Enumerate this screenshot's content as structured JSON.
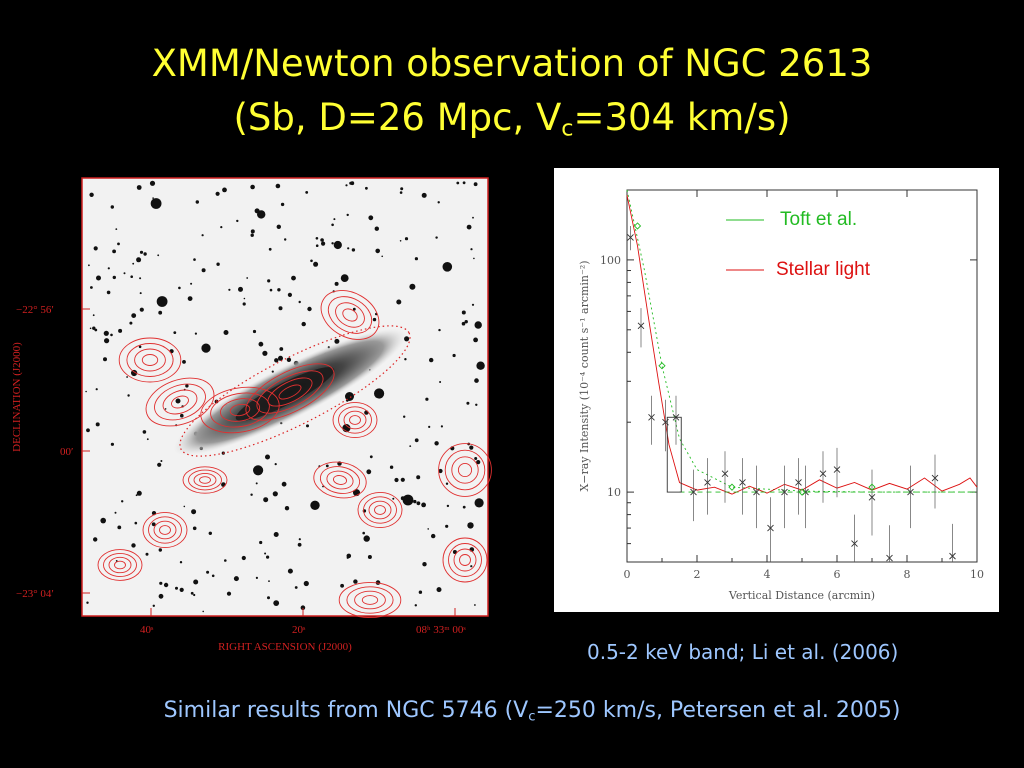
{
  "slide": {
    "title_line1": "XMM/Newton observation of NGC 2613",
    "title_line2_prefix": "(Sb, D=26 Mpc, V",
    "title_line2_sub": "c",
    "title_line2_suffix": "=304 km/s)"
  },
  "sky_image": {
    "ylabel": "DECLINATION (J2000)",
    "xlabel": "RIGHT ASCENSION (J2000)",
    "ytick_1": "−22° 56′",
    "ytick_2": "00′",
    "ytick_3": "−23° 04′",
    "xtick_1": "40ˢ",
    "xtick_2": "20ˢ",
    "xtick_3": "08ʰ 33ᵐ 00ˢ",
    "contour_color": "#e03030"
  },
  "chart_data": {
    "type": "scatter",
    "xlabel": "Vertical Distance (arcmin)",
    "ylabel": "X−ray Intensity (10⁻⁴ count s⁻¹ arcmin⁻²)",
    "xlim": [
      0,
      10
    ],
    "ylim": [
      5,
      200
    ],
    "yscale": "log",
    "xticks": [
      "0",
      "2",
      "4",
      "6",
      "8",
      "10"
    ],
    "yticks": [
      "10",
      "100"
    ],
    "legend": [
      {
        "name": "Toft et al.",
        "color": "#22bb22"
      },
      {
        "name": "Stellar light",
        "color": "#dd1111"
      }
    ],
    "points": [
      {
        "x": 0.1,
        "y": 125,
        "err": 15
      },
      {
        "x": 0.4,
        "y": 52,
        "err": 10
      },
      {
        "x": 0.7,
        "y": 21,
        "err": 5
      },
      {
        "x": 1.1,
        "y": 20,
        "err": 5
      },
      {
        "x": 1.4,
        "y": 21,
        "err": 5
      },
      {
        "x": 1.9,
        "y": 10,
        "err": 2.5
      },
      {
        "x": 2.3,
        "y": 11,
        "err": 3
      },
      {
        "x": 2.8,
        "y": 12,
        "err": 3
      },
      {
        "x": 3.3,
        "y": 11,
        "err": 3
      },
      {
        "x": 3.7,
        "y": 10,
        "err": 3
      },
      {
        "x": 4.1,
        "y": 7,
        "err": 2.5
      },
      {
        "x": 4.5,
        "y": 10,
        "err": 3
      },
      {
        "x": 4.9,
        "y": 11,
        "err": 3
      },
      {
        "x": 5.1,
        "y": 10,
        "err": 3
      },
      {
        "x": 5.6,
        "y": 12,
        "err": 3
      },
      {
        "x": 6.0,
        "y": 12.5,
        "err": 3
      },
      {
        "x": 6.5,
        "y": 6,
        "err": 2
      },
      {
        "x": 7.0,
        "y": 9.5,
        "err": 3
      },
      {
        "x": 7.5,
        "y": 5.2,
        "err": 2
      },
      {
        "x": 8.1,
        "y": 10,
        "err": 3
      },
      {
        "x": 8.8,
        "y": 11.5,
        "err": 3
      },
      {
        "x": 9.3,
        "y": 5.3,
        "err": 2
      }
    ],
    "toft_points": [
      {
        "x": 0.3,
        "y": 140
      },
      {
        "x": 1.0,
        "y": 35
      },
      {
        "x": 3.0,
        "y": 10.5
      },
      {
        "x": 5.0,
        "y": 10
      },
      {
        "x": 7.0,
        "y": 10.5
      }
    ],
    "stellar_curve": [
      [
        0.0,
        190
      ],
      [
        0.3,
        115
      ],
      [
        0.6,
        58
      ],
      [
        0.9,
        30
      ],
      [
        1.2,
        16
      ],
      [
        1.5,
        11
      ],
      [
        2.0,
        10.2
      ],
      [
        2.5,
        10.5
      ],
      [
        3.0,
        9.8
      ],
      [
        3.5,
        10.6
      ],
      [
        4.0,
        9.9
      ],
      [
        4.5,
        10.8
      ],
      [
        5.0,
        10.2
      ],
      [
        5.5,
        11.3
      ],
      [
        6.0,
        10.4
      ],
      [
        6.5,
        11.0
      ],
      [
        7.0,
        10.2
      ],
      [
        7.5,
        10.9
      ],
      [
        8.0,
        10.3
      ],
      [
        8.5,
        11.5
      ],
      [
        9.0,
        10.1
      ],
      [
        9.5,
        10.8
      ],
      [
        9.8,
        11.5
      ],
      [
        10.0,
        10.5
      ]
    ],
    "toft_curve": [
      [
        0.0,
        300
      ],
      [
        0.5,
        90
      ],
      [
        1.0,
        35
      ],
      [
        1.5,
        17
      ],
      [
        2.0,
        12.5
      ],
      [
        3.0,
        10.5
      ],
      [
        5.0,
        10.1
      ],
      [
        7.0,
        10.0
      ],
      [
        10.0,
        10.0
      ]
    ]
  },
  "caption": "0.5-2 keV band;  Li et al. (2006)",
  "footer": {
    "prefix": "Similar results from NGC 5746 (V",
    "sub": "c",
    "suffix": "=250 km/s, Petersen et al. 2005)"
  }
}
